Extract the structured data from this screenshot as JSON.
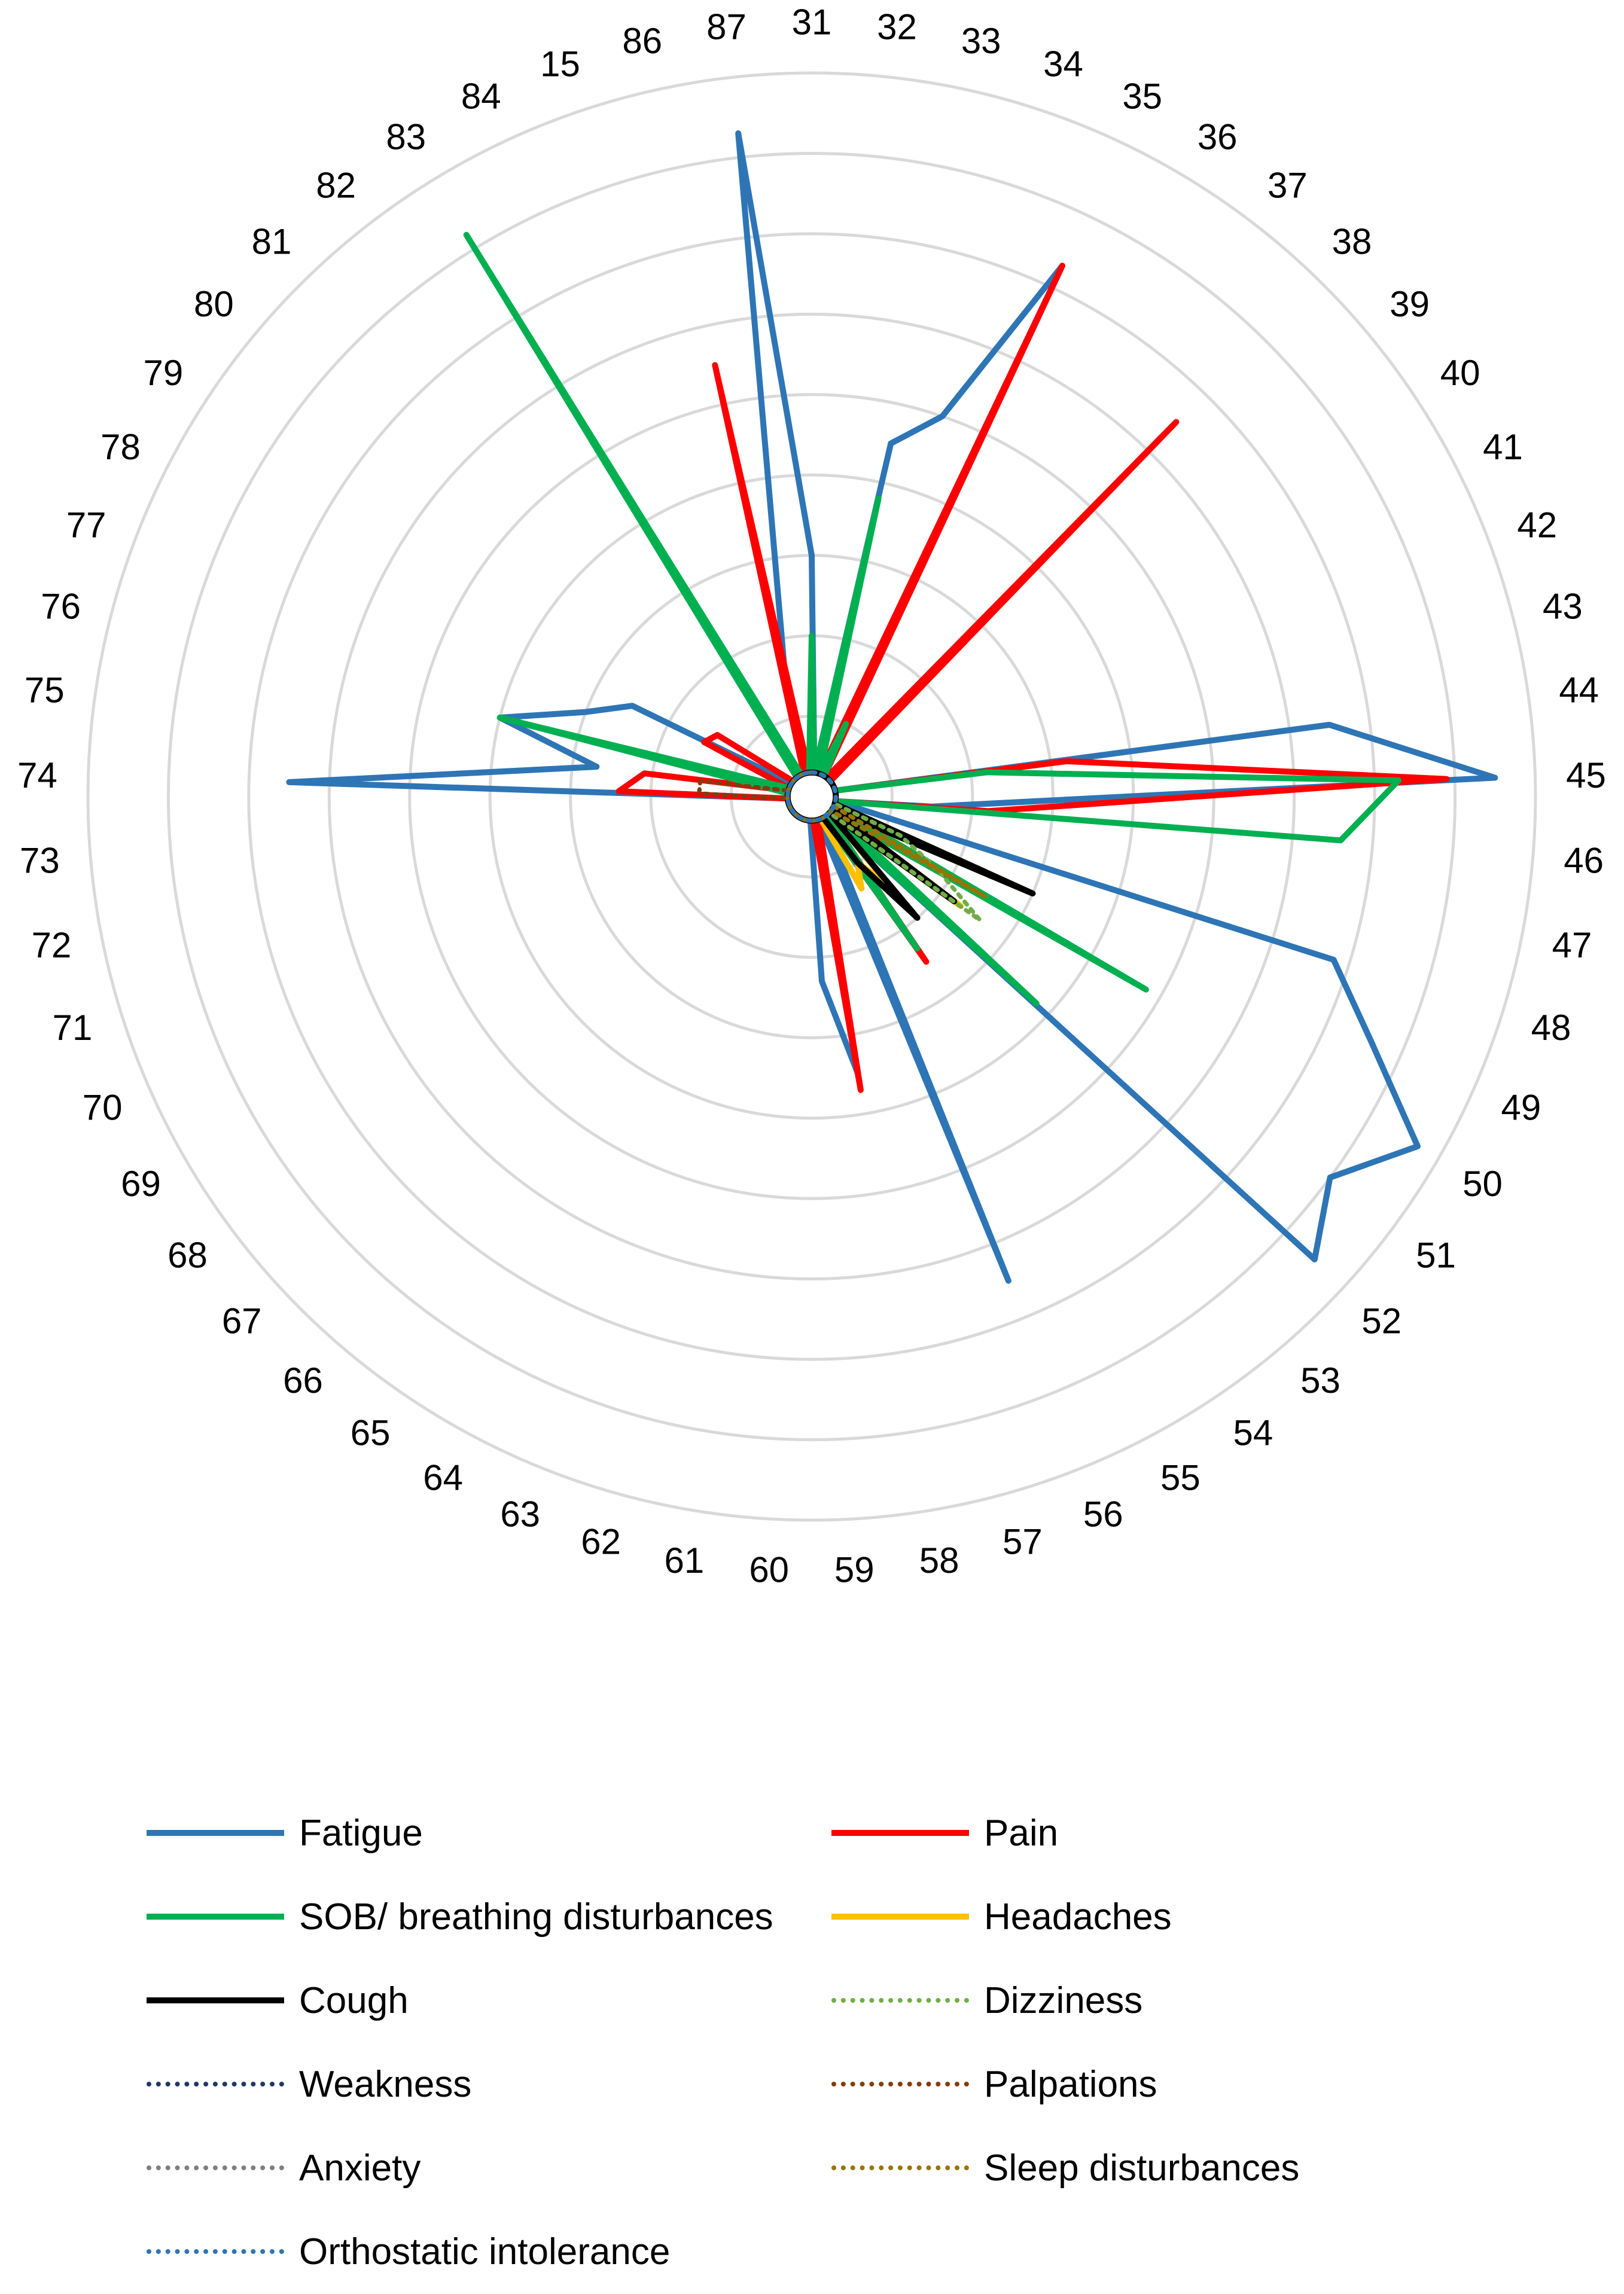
{
  "chart_data": {
    "type": "radar",
    "title": "",
    "rlim": [
      0,
      9
    ],
    "grid": true,
    "categories": [
      "31",
      "32",
      "33",
      "34",
      "35",
      "36",
      "37",
      "38",
      "39",
      "40",
      "41",
      "42",
      "43",
      "44",
      "45",
      "46",
      "47",
      "48",
      "49",
      "50",
      "51",
      "52",
      "53",
      "54",
      "55",
      "56",
      "57",
      "58",
      "59",
      "60",
      "61",
      "62",
      "63",
      "64",
      "65",
      "66",
      "67",
      "68",
      "69",
      "70",
      "71",
      "72",
      "73",
      "74",
      "75",
      "76",
      "77",
      "78",
      "79",
      "80",
      "81",
      "82",
      "83",
      "84",
      "15",
      "86",
      "87"
    ],
    "series": [
      {
        "name": "Fatigue",
        "color": "#2E75B6",
        "dash": "solid",
        "values": [
          3,
          0.3,
          4.5,
          5,
          7.3,
          0.3,
          0.3,
          5.5,
          0.3,
          0.3,
          0.3,
          0.3,
          0.3,
          6.5,
          8.5,
          1.5,
          0.3,
          6.8,
          7.6,
          8.7,
          8,
          8.5,
          0.3,
          0.3,
          0.3,
          6.5,
          0.3,
          3.5,
          2.3,
          0.3,
          0.3,
          0.3,
          0.3,
          0.3,
          0.3,
          0.3,
          0.3,
          0.3,
          0.3,
          0.3,
          0.3,
          0.3,
          0.3,
          6.5,
          2.7,
          4,
          3,
          2.5,
          0.3,
          0.3,
          0.3,
          0.3,
          7.5,
          0.3,
          0.3,
          1.5,
          8.3
        ]
      },
      {
        "name": "Pain",
        "color": "#FF0000",
        "dash": "solid",
        "values": [
          1,
          0.3,
          0.3,
          0.3,
          7.3,
          0.3,
          0.3,
          6.5,
          0.3,
          0.3,
          0.3,
          0.3,
          0.3,
          3.2,
          7.9,
          2.2,
          0.3,
          0.3,
          0.3,
          0.3,
          0.3,
          0.3,
          0.3,
          2.5,
          0.3,
          0.3,
          0.3,
          3.7,
          0.3,
          0.3,
          0.3,
          0.3,
          0.3,
          0.3,
          0.3,
          0.3,
          0.3,
          0.3,
          0.3,
          0.3,
          0.3,
          0.3,
          0.3,
          2.4,
          2.1,
          0.3,
          0.3,
          1.5,
          1.4,
          0.3,
          0.3,
          0.3,
          0.3,
          0.3,
          0.3,
          5.5,
          0.3
        ]
      },
      {
        "name": "SOB/ breathing disturbances",
        "color": "#00B050",
        "dash": "solid",
        "values": [
          2,
          0.3,
          3.8,
          0.3,
          1,
          0.3,
          0.3,
          0.3,
          0.3,
          0.3,
          0.3,
          0.3,
          0.3,
          2.2,
          7.3,
          6.6,
          0.3,
          0.3,
          0.3,
          4.8,
          0.3,
          3.8,
          0.3,
          2.3,
          0.3,
          0.3,
          0.3,
          0.3,
          0.3,
          0.3,
          0.3,
          0.3,
          0.3,
          0.3,
          0.3,
          0.3,
          0.3,
          0.3,
          0.3,
          0.3,
          0.3,
          0.3,
          0.3,
          0.3,
          0.3,
          4,
          0.3,
          0.3,
          0.3,
          0.3,
          0.3,
          0.3,
          8.2,
          0.3,
          0.3,
          0.3,
          0.3
        ]
      },
      {
        "name": "Headaches",
        "color": "#FFC000",
        "dash": "solid",
        "values": [
          0.3,
          0.3,
          0.3,
          0.3,
          0.3,
          0.3,
          0.3,
          0.3,
          0.3,
          0.3,
          0.3,
          0.3,
          0.3,
          0.3,
          0.3,
          0.3,
          0.3,
          0.3,
          3,
          0.3,
          2.3,
          0.3,
          1.5,
          1,
          1.3,
          0.3,
          0.3,
          0.3,
          0.3,
          0.3,
          0.3,
          0.3,
          0.3,
          0.3,
          0.3,
          0.3,
          0.3,
          0.3,
          0.3,
          0.3,
          0.3,
          0.3,
          0.3,
          0.3,
          0.3,
          0.3,
          0.3,
          0.3,
          0.3,
          0.3,
          0.3,
          0.3,
          0.3,
          0.3,
          0.3,
          0.3,
          0.3
        ]
      },
      {
        "name": "Cough",
        "color": "#000000",
        "dash": "solid",
        "values": [
          0.3,
          0.3,
          0.3,
          0.3,
          0.3,
          0.3,
          0.3,
          0.3,
          0.3,
          0.3,
          0.3,
          0.3,
          0.3,
          0.3,
          0.3,
          0.3,
          0.3,
          0.3,
          3,
          0.3,
          2.2,
          0.3,
          2,
          1,
          0.3,
          0.3,
          0.3,
          0.3,
          0.3,
          0.3,
          0.3,
          0.3,
          0.3,
          0.3,
          0.3,
          0.3,
          0.3,
          0.3,
          0.3,
          0.3,
          0.3,
          0.3,
          0.3,
          0.3,
          0.3,
          0.3,
          0.3,
          0.3,
          0.3,
          0.3,
          0.3,
          0.3,
          0.3,
          0.3,
          0.3,
          0.3,
          0.3
        ]
      },
      {
        "name": "Dizziness",
        "color": "#70AD47",
        "dash": "dot",
        "values": [
          0.3,
          0.3,
          0.3,
          0.3,
          0.3,
          0.3,
          0.3,
          0.3,
          0.3,
          0.3,
          0.3,
          0.3,
          0.3,
          0.3,
          0.3,
          0.3,
          0.3,
          0.3,
          1.2,
          1.8,
          2.6,
          0.3,
          0.3,
          0.3,
          0.3,
          0.3,
          0.3,
          0.3,
          0.3,
          0.3,
          0.3,
          0.3,
          0.3,
          0.3,
          0.3,
          0.3,
          0.3,
          0.3,
          0.3,
          0.3,
          0.3,
          0.3,
          0.3,
          0.3,
          0.3,
          0.3,
          0.3,
          0.3,
          0.3,
          0.3,
          0.3,
          0.3,
          0.3,
          0.3,
          0.3,
          0.3,
          0.3
        ]
      },
      {
        "name": "Weakness",
        "color": "#203864",
        "dash": "dot",
        "values": [
          0.3,
          0.3,
          0.3,
          0.3,
          0.3,
          0.3,
          0.3,
          0.3,
          0.3,
          0.3,
          0.3,
          0.3,
          0.3,
          0.3,
          0.3,
          0.3,
          0.3,
          0.3,
          0.3,
          0.3,
          0.3,
          0.3,
          0.3,
          0.3,
          0.3,
          0.3,
          0.3,
          0.3,
          0.3,
          0.3,
          0.3,
          0.3,
          0.3,
          0.3,
          0.3,
          0.3,
          0.3,
          0.3,
          0.3,
          0.3,
          0.3,
          0.3,
          0.3,
          0.3,
          0.3,
          0.3,
          0.3,
          0.3,
          0.3,
          0.3,
          0.3,
          0.3,
          0.3,
          0.3,
          0.3,
          0.3,
          0.3
        ]
      },
      {
        "name": "Palpations",
        "color": "#843C0C",
        "dash": "dot",
        "values": [
          0.3,
          0.3,
          0.3,
          0.3,
          0.3,
          0.3,
          0.3,
          0.3,
          0.3,
          0.3,
          0.3,
          0.3,
          0.3,
          0.3,
          0.3,
          0.3,
          0.3,
          0.3,
          0.3,
          0.3,
          0.3,
          0.3,
          0.3,
          0.3,
          0.3,
          0.3,
          0.3,
          0.3,
          0.3,
          0.3,
          0.3,
          0.3,
          0.3,
          0.3,
          0.3,
          0.3,
          0.3,
          0.3,
          0.3,
          0.3,
          0.3,
          0.3,
          0.3,
          1.4,
          1.4,
          0.3,
          0.3,
          0.3,
          0.3,
          0.3,
          0.3,
          0.3,
          0.3,
          0.3,
          0.3,
          0.3,
          0.3
        ]
      },
      {
        "name": "Anxiety",
        "color": "#7F7F7F",
        "dash": "dot",
        "values": [
          0.3,
          0.3,
          0.3,
          0.3,
          0.3,
          0.3,
          0.3,
          0.3,
          0.3,
          0.3,
          0.3,
          0.3,
          0.3,
          0.3,
          0.3,
          0.3,
          0.3,
          0.3,
          0.3,
          0.3,
          0.3,
          0.3,
          0.3,
          0.3,
          0.3,
          0.3,
          0.3,
          0.3,
          0.3,
          0.3,
          0.3,
          0.3,
          0.3,
          0.3,
          0.3,
          0.3,
          0.3,
          0.3,
          0.3,
          0.3,
          0.3,
          0.3,
          0.3,
          0.3,
          0.3,
          0.3,
          0.3,
          0.3,
          0.3,
          0.3,
          0.3,
          0.3,
          0.3,
          0.3,
          0.3,
          0.3,
          0.3
        ]
      },
      {
        "name": "Sleep disturbances",
        "color": "#997300",
        "dash": "dot",
        "values": [
          0.3,
          0.3,
          0.3,
          0.3,
          0.3,
          0.3,
          0.3,
          0.3,
          0.3,
          0.3,
          0.3,
          0.3,
          0.3,
          0.3,
          0.3,
          0.3,
          0.3,
          0.3,
          0.3,
          2.5,
          0.3,
          0.3,
          0.3,
          0.3,
          0.3,
          0.3,
          0.3,
          0.3,
          0.3,
          0.3,
          0.3,
          0.3,
          0.3,
          0.3,
          0.3,
          0.3,
          0.3,
          0.3,
          0.3,
          0.3,
          0.3,
          0.3,
          0.3,
          0.3,
          0.3,
          0.3,
          0.3,
          0.3,
          0.3,
          0.3,
          0.3,
          0.3,
          0.3,
          0.3,
          0.3,
          0.3,
          0.3
        ]
      },
      {
        "name": "Orthostatic intolerance",
        "color": "#2E75B6",
        "dash": "dot",
        "values": [
          0.3,
          0.3,
          0.3,
          0.3,
          0.3,
          0.3,
          0.3,
          0.3,
          0.3,
          0.3,
          0.3,
          0.3,
          0.3,
          0.3,
          0.3,
          0.3,
          0.3,
          0.3,
          0.3,
          0.3,
          0.3,
          0.3,
          0.3,
          0.3,
          0.3,
          0.3,
          0.3,
          0.3,
          0.3,
          0.3,
          0.3,
          0.3,
          0.3,
          0.3,
          0.3,
          0.3,
          0.3,
          0.3,
          0.3,
          0.3,
          0.3,
          0.3,
          0.3,
          0.3,
          0.3,
          0.3,
          0.3,
          0.3,
          0.3,
          0.3,
          0.3,
          0.3,
          0.3,
          0.3,
          0.3,
          0.3,
          0.3
        ]
      }
    ],
    "legend_position": "bottom"
  }
}
